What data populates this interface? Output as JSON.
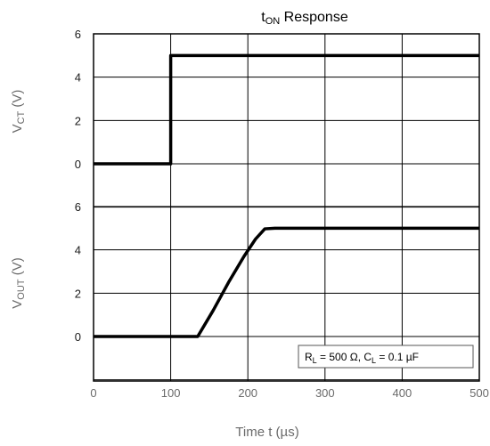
{
  "chart_data": {
    "type": "line",
    "title_main": "t",
    "title_sub": "ON",
    "title_rest": " Response",
    "xlabel": "Time t (µs)",
    "xlim": [
      0,
      500
    ],
    "x_ticks": [
      "0",
      "100",
      "200",
      "300",
      "400",
      "500"
    ],
    "y_ticks_upper": [
      "6",
      "4",
      "2",
      "0"
    ],
    "y_ticks_lower": [
      "6",
      "4",
      "2",
      "0"
    ],
    "ylabel_upper": {
      "main": "V",
      "sub": "CT",
      "rest": " (V)"
    },
    "ylabel_lower": {
      "main": "V",
      "sub": "OUT",
      "rest": " (V)"
    },
    "grid": true,
    "panels": [
      {
        "ylim": [
          0,
          6
        ],
        "series": [
          {
            "x": [
              0,
              100,
              100,
              500
            ],
            "y": [
              0,
              0,
              5,
              5
            ],
            "color": "#000000"
          }
        ]
      },
      {
        "ylim": [
          0,
          6
        ],
        "series": [
          {
            "x": [
              0,
              135,
              155,
              175,
              195,
              210,
              222,
              235,
              500
            ],
            "y": [
              0,
              0,
              1.2,
              2.5,
              3.7,
              4.5,
              4.97,
              5,
              5
            ],
            "color": "#000000"
          }
        ]
      }
    ],
    "annotation": {
      "r_main": "R",
      "r_sub": "L",
      "r_value": " = 500 Ω, ",
      "c_main": "C",
      "c_sub": "L",
      "c_value": " = 0.1 µF",
      "placement": "bottom-right"
    }
  }
}
